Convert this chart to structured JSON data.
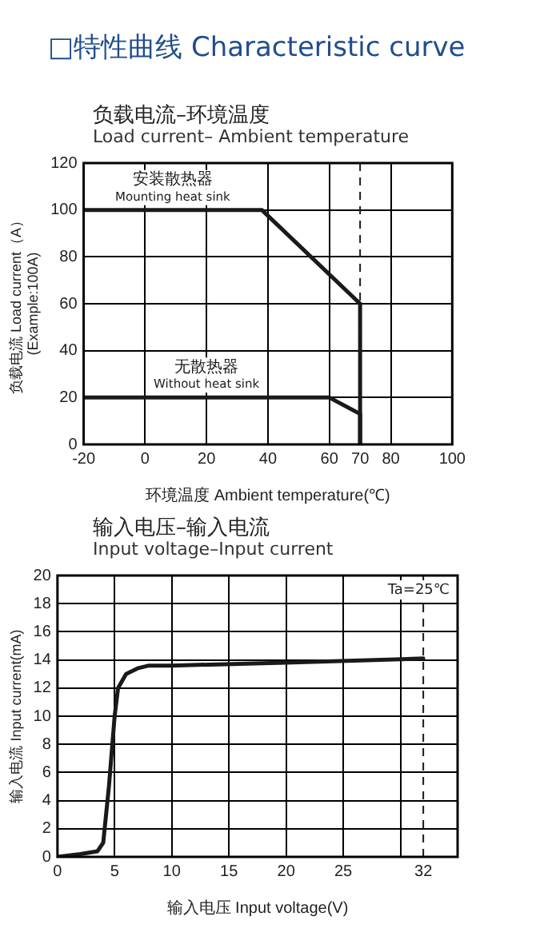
{
  "chart_data": [
    {
      "type": "other",
      "title": "□特性曲线 Characteristic curve"
    },
    {
      "type": "line",
      "title": "负载电流–环境温度",
      "subtitle": "Load current– Ambient temperature",
      "xlabel": "环境温度 Ambient temperature(℃)",
      "ylabel": "负载电流 Load current（A）\n(Example:100A)",
      "xlim": [
        -20,
        100
      ],
      "xticks": [
        -20,
        0,
        20,
        40,
        60,
        70,
        80,
        100
      ],
      "ylim": [
        0,
        120
      ],
      "yticks": [
        0,
        20,
        40,
        60,
        80,
        100,
        120
      ],
      "grid": true,
      "legend": false,
      "marker": "none",
      "line_style": "solid",
      "series": [
        {
          "name": "安装散热器\nMounting heat sink",
          "color": "#1a1a1a",
          "x": [
            -20,
            38,
            70,
            70
          ],
          "values": [
            100,
            100,
            60,
            0
          ]
        },
        {
          "name": "无散热器\nWithout heat sink",
          "color": "#1a1a1a",
          "x": [
            -20,
            60,
            70,
            70
          ],
          "values": [
            20,
            20,
            13,
            0
          ]
        }
      ],
      "ref_lines": [
        {
          "axis": "x",
          "value": 70,
          "label": null,
          "color": "#1a1a1a",
          "line_style": "dashed"
        }
      ]
    },
    {
      "type": "line",
      "title": "输入电压–输入电流",
      "subtitle": "Input voltage–Input current",
      "xlabel": "输入电压 Input voltage(V)",
      "ylabel": "输入电流 Input current(mA)",
      "xlim": [
        0,
        35
      ],
      "xticks": [
        0,
        5,
        10,
        15,
        20,
        25,
        {
          "value": 30,
          "label": null
        },
        32
      ],
      "ylim": [
        0,
        20
      ],
      "yticks": [
        0,
        2,
        4,
        6,
        8,
        10,
        12,
        14,
        16,
        18,
        20
      ],
      "grid": true,
      "legend": false,
      "marker": "none",
      "line_style": "solid",
      "series": [
        {
          "color": "#1a1a1a",
          "x": [
            0,
            2,
            3.5,
            4,
            4.5,
            5,
            5.3,
            6,
            7,
            8,
            10,
            20,
            32
          ],
          "values": [
            0,
            0.2,
            0.4,
            1,
            5,
            10,
            12,
            13,
            13.4,
            13.6,
            13.6,
            13.8,
            14.1
          ]
        }
      ],
      "ref_lines": [
        {
          "axis": "x",
          "value": 32,
          "label": null,
          "color": "#1a1a1a",
          "line_style": "dashed"
        }
      ],
      "annotations": [
        "Ta=25℃"
      ]
    }
  ]
}
